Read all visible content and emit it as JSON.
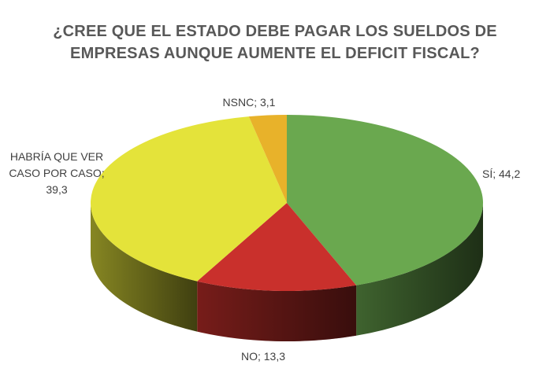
{
  "title": {
    "line1": "¿CREE QUE EL ESTADO DEBE PAGAR LOS SUELDOS DE",
    "line2": "EMPRESAS AUNQUE AUMENTE EL DEFICIT FISCAL?"
  },
  "chart_data": {
    "type": "pie",
    "title": "¿CREE QUE EL ESTADO DEBE PAGAR LOS SUELDOS DE EMPRESAS AUNQUE AUMENTE EL DEFICIT FISCAL?",
    "style": "3d",
    "slices": [
      {
        "name": "SÍ",
        "value": 44.2,
        "color": "#6aa84f",
        "label": [
          "SÍ; 44,2"
        ]
      },
      {
        "name": "NO",
        "value": 13.3,
        "color": "#c9302c",
        "label": [
          "NO; 13,3"
        ]
      },
      {
        "name": "HABRÍA QUE VER CASO POR CASO",
        "value": 39.3,
        "color": "#e4e33a",
        "label": [
          "HABRÍA QUE VER",
          "CASO POR CASO;",
          "39,3"
        ]
      },
      {
        "name": "NSNC",
        "value": 3.1,
        "color": "#e8b22a",
        "label": [
          "NSNC; 3,1"
        ]
      }
    ]
  }
}
